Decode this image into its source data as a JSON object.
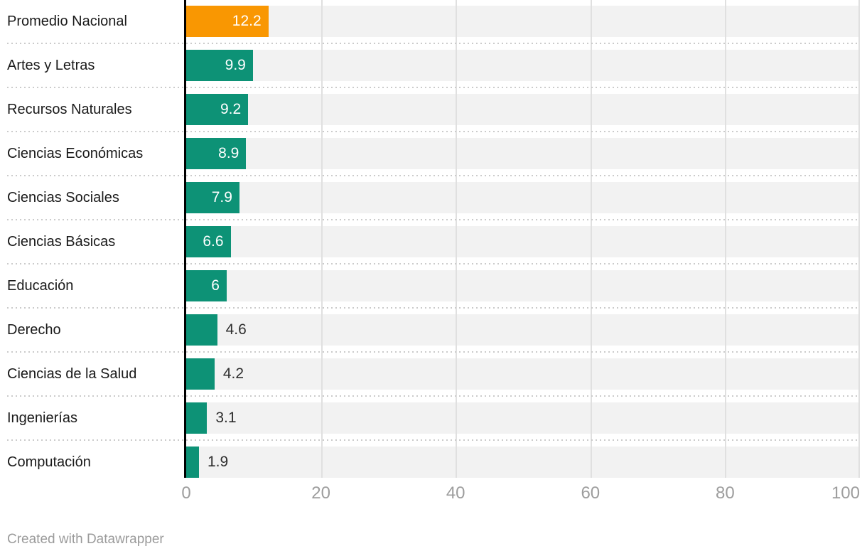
{
  "chart_data": {
    "type": "bar",
    "orientation": "horizontal",
    "title": "",
    "xlabel": "",
    "ylabel": "",
    "xlim": [
      0,
      100
    ],
    "x_ticks": [
      "0",
      "20",
      "40",
      "60",
      "80",
      "100"
    ],
    "grid": "vertical",
    "legend": "none",
    "colors": {
      "bar_default": "#0d9276",
      "bar_highlight": "#f99702",
      "track": "#f2f2f2",
      "gridline": "#e0e0e0",
      "axis_line": "#000000",
      "value_inside": "#ffffff",
      "value_outside": "#2e2e2e",
      "tick_label": "#9d9d9d",
      "row_label": "#1a1a1a"
    },
    "items": [
      {
        "label": "Promedio Nacional",
        "value": 12.2,
        "display": "12.2",
        "highlight": true,
        "value_inside_bar": true
      },
      {
        "label": "Artes y Letras",
        "value": 9.9,
        "display": "9.9",
        "highlight": false,
        "value_inside_bar": true
      },
      {
        "label": "Recursos Naturales",
        "value": 9.2,
        "display": "9.2",
        "highlight": false,
        "value_inside_bar": true
      },
      {
        "label": "Ciencias Económicas",
        "value": 8.9,
        "display": "8.9",
        "highlight": false,
        "value_inside_bar": true
      },
      {
        "label": "Ciencias Sociales",
        "value": 7.9,
        "display": "7.9",
        "highlight": false,
        "value_inside_bar": true
      },
      {
        "label": "Ciencias Básicas",
        "value": 6.6,
        "display": "6.6",
        "highlight": false,
        "value_inside_bar": true
      },
      {
        "label": "Educación",
        "value": 6,
        "display": "6",
        "highlight": false,
        "value_inside_bar": true
      },
      {
        "label": "Derecho",
        "value": 4.6,
        "display": "4.6",
        "highlight": false,
        "value_inside_bar": false
      },
      {
        "label": "Ciencias de la Salud",
        "value": 4.2,
        "display": "4.2",
        "highlight": false,
        "value_inside_bar": false
      },
      {
        "label": "Ingenierías",
        "value": 3.1,
        "display": "3.1",
        "highlight": false,
        "value_inside_bar": false
      },
      {
        "label": "Computación",
        "value": 1.9,
        "display": "1.9",
        "highlight": false,
        "value_inside_bar": false
      }
    ]
  },
  "footer": {
    "credit": "Created with Datawrapper"
  }
}
